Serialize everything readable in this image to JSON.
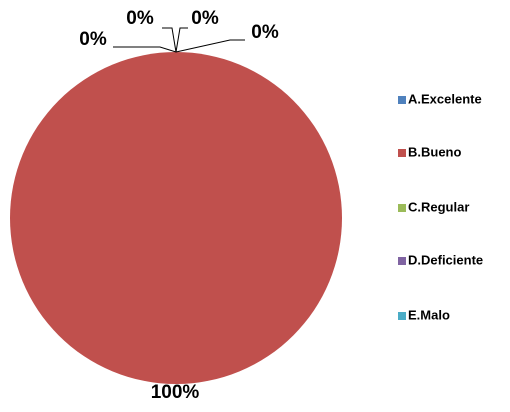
{
  "chart_data": {
    "type": "pie",
    "categories": [
      "A.Excelente",
      "B.Bueno",
      "C.Regular",
      "D.Deficiente",
      "E.Malo"
    ],
    "values": [
      0,
      100,
      0,
      0,
      0
    ],
    "value_labels": [
      "0%",
      "100%",
      "0%",
      "0%",
      "0%"
    ],
    "colors": [
      "#4F81BD",
      "#C0504D",
      "#9BBB59",
      "#8064A2",
      "#4BACC6"
    ],
    "legend": "right"
  }
}
